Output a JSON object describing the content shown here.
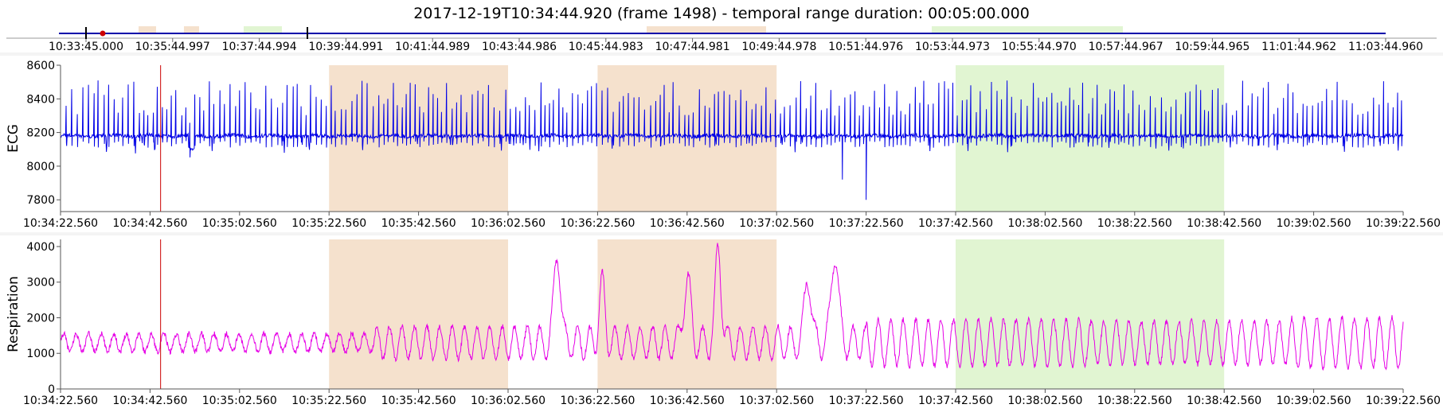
{
  "header": {
    "title": "2017-12-19T10:34:44.920 (frame 1498) - temporal range duration: 00:05:00.000"
  },
  "colors": {
    "ecg": "#0000e6",
    "respiration": "#e600e6",
    "cursor": "#cc0000",
    "orange_band": "#f5e1cd",
    "green_band": "#e1f5d2",
    "overview_line": "#0000aa",
    "axis": "#555555"
  },
  "timeline": {
    "tick_labels": [
      "10:33:45.000",
      "10:35:44.997",
      "10:37:44.994",
      "10:39:44.991",
      "10:41:44.989",
      "10:43:44.986",
      "10:45:44.983",
      "10:47:44.981",
      "10:49:44.978",
      "10:51:44.976",
      "10:53:44.973",
      "10:55:44.970",
      "10:57:44.967",
      "10:59:44.965",
      "11:01:44.962",
      "11:03:44.960"
    ]
  },
  "chart_data": [
    {
      "type": "line",
      "name": "ecg-chart",
      "ylabel": "ECG",
      "ylim": [
        7730,
        8600
      ],
      "yticks": [
        7800,
        8000,
        8200,
        8400,
        8600
      ],
      "y_tick_labels": [
        "7800",
        "8000",
        "8200",
        "8400",
        "8600"
      ],
      "xlim_seconds": [
        0,
        300
      ],
      "x_tick_labels": [
        "10:34:22.560",
        "10:34:42.560",
        "10:35:02.560",
        "10:35:22.560",
        "10:35:42.560",
        "10:36:02.560",
        "10:36:22.560",
        "10:36:42.560",
        "10:37:02.560",
        "10:37:22.560",
        "10:37:42.560",
        "10:38:02.560",
        "10:38:22.560",
        "10:38:42.560",
        "10:39:02.560",
        "10:39:22.560"
      ],
      "baseline": 8180,
      "beat_peak": 8440,
      "deepest_dip": {
        "time": "10:37:22",
        "value": 7800
      },
      "cursor_time": "10:34:44.920"
    },
    {
      "type": "line",
      "name": "respiration-chart",
      "ylabel": "Respiration",
      "ylim": [
        0,
        4200
      ],
      "yticks": [
        0,
        1000,
        2000,
        3000,
        4000
      ],
      "y_tick_labels": [
        "0",
        "1000",
        "2000",
        "3000",
        "4000"
      ],
      "xlim_seconds": [
        0,
        300
      ],
      "x_tick_labels": [
        "10:34:22.560",
        "10:34:42.560",
        "10:35:02.560",
        "10:35:22.560",
        "10:35:42.560",
        "10:36:02.560",
        "10:36:22.560",
        "10:36:42.560",
        "10:37:02.560",
        "10:37:22.560",
        "10:37:42.560",
        "10:38:02.560",
        "10:38:22.560",
        "10:38:42.560",
        "10:39:02.560",
        "10:39:22.560"
      ],
      "baseline": 1300,
      "max_value": 4100,
      "cursor_time": "10:34:44.920"
    }
  ],
  "annotations": [
    {
      "label": "",
      "color": "orange",
      "start": "10:35:22.560",
      "end": "10:36:02.560"
    },
    {
      "label": "",
      "color": "orange",
      "start": "10:36:22.560",
      "end": "10:37:02.560"
    },
    {
      "label": "",
      "color": "green",
      "start": "10:37:42.560",
      "end": "10:38:42.560"
    }
  ]
}
